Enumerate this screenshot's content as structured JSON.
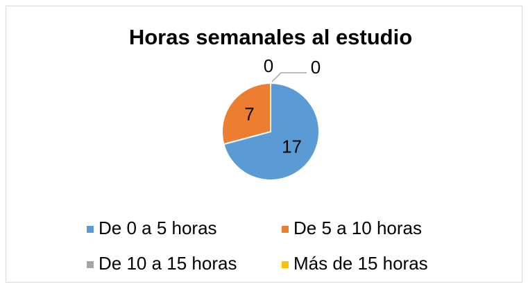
{
  "chart_data": {
    "type": "pie",
    "title": "Horas semanales al estudio",
    "categories": [
      "De 0 a 5 horas",
      "De 5 a 10 horas",
      "De 10 a 15 horas",
      "Más de 15 horas"
    ],
    "values": [
      17,
      7,
      0,
      0
    ],
    "colors": [
      "#5b9bd5",
      "#ed7d31",
      "#a5a5a5",
      "#ffc000"
    ],
    "legend": "bottom"
  }
}
